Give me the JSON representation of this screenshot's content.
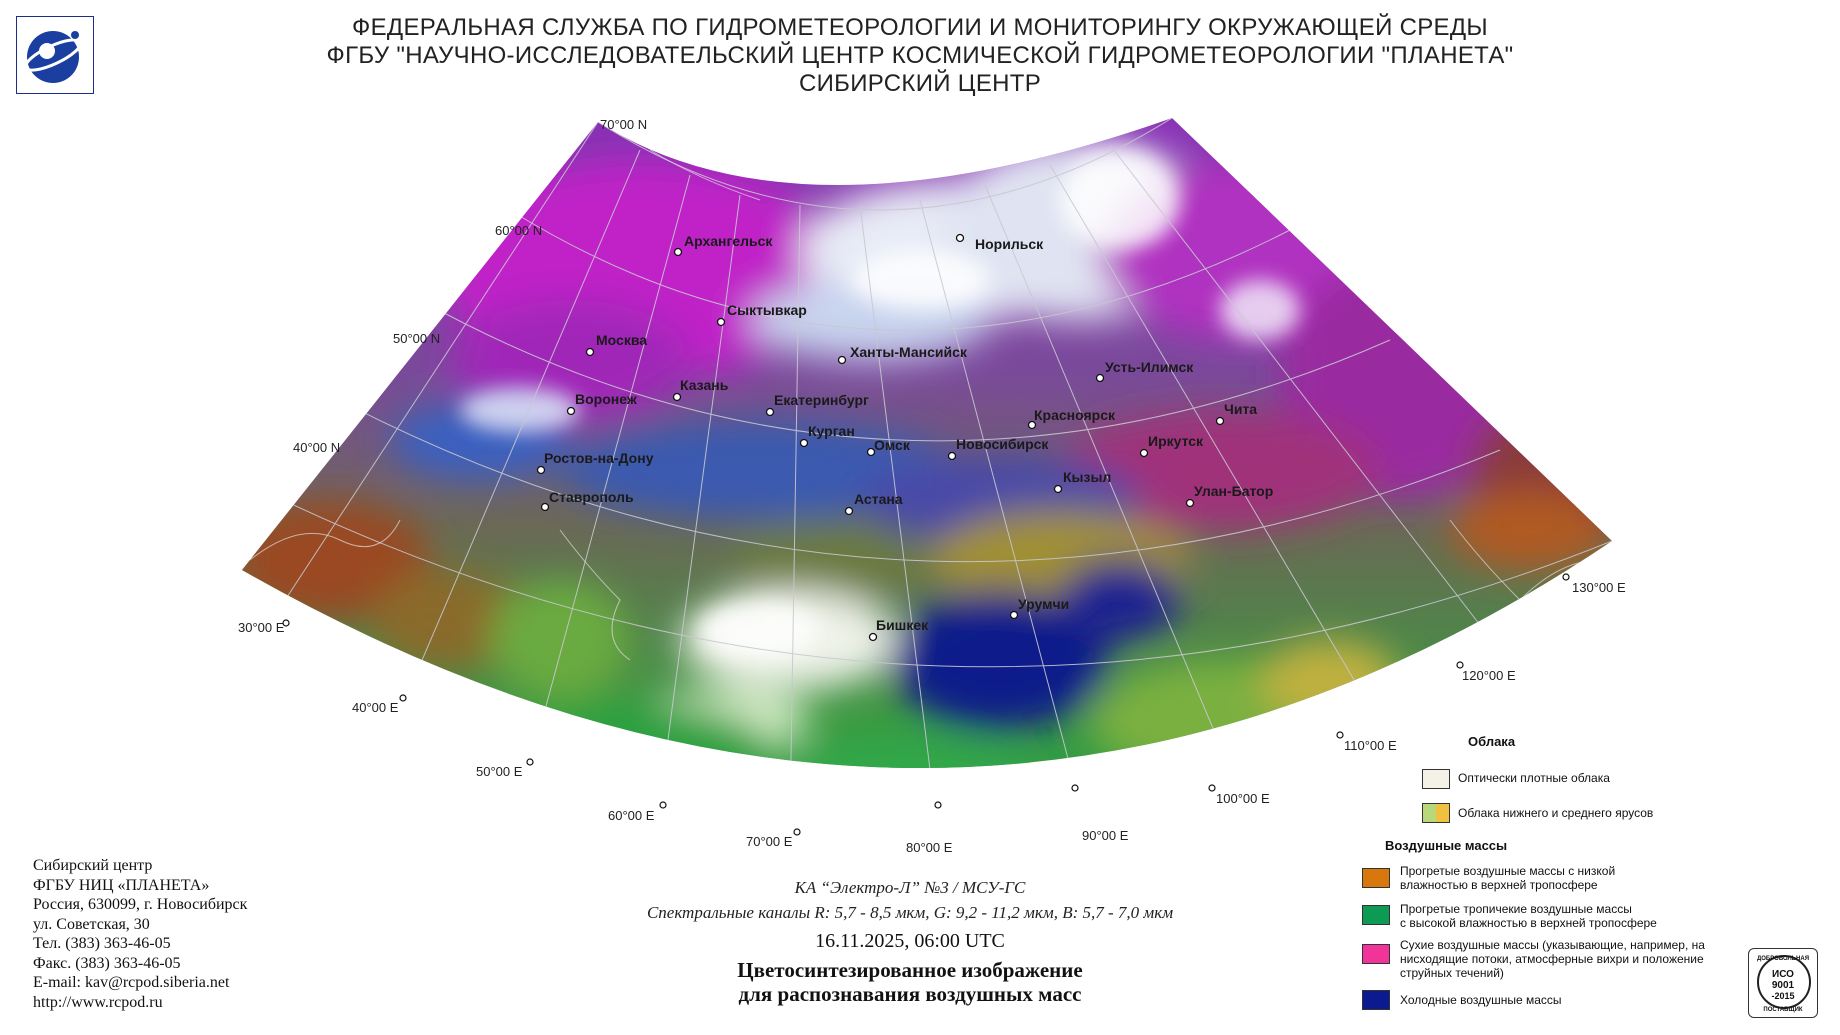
{
  "header": {
    "line1": "ФЕДЕРАЛЬНАЯ СЛУЖБА ПО ГИДРОМЕТЕОРОЛОГИИ И МОНИТОРИНГУ ОКРУЖАЮЩЕЙ СРЕДЫ",
    "line2": "ФГБУ \"НАУЧНО-ИССЛЕДОВАТЕЛЬСКИЙ ЦЕНТР КОСМИЧЕСКОЙ ГИДРОМЕТЕОРОЛОГИИ \"ПЛАНЕТА\"",
    "line3": "СИБИРСКИЙ ЦЕНТР"
  },
  "map": {
    "latitudes": [
      "70°00 N",
      "60°00 N",
      "50°00 N",
      "40°00 N"
    ],
    "longitudes": [
      "30°00 E",
      "40°00 E",
      "50°00 E",
      "60°00 E",
      "70°00 E",
      "80°00 E",
      "90°00 E",
      "100°00 E",
      "110°00 E",
      "120°00 E",
      "130°00 E"
    ],
    "cities": {
      "arkhangelsk": "Архангельск",
      "norilsk": "Норильск",
      "syktyvkar": "Сыктывкар",
      "moscow": "Москва",
      "khanty": "Ханты-Мансийск",
      "kazan": "Казань",
      "voronezh": "Воронеж",
      "yekaterinburg": "Екатеринбург",
      "ust_ilimsk": "Усть-Илимск",
      "krasnoyarsk": "Красноярск",
      "chita": "Чита",
      "kurgan": "Курган",
      "omsk": "Омск",
      "novosibirsk": "Новосибирск",
      "irkutsk": "Иркутск",
      "rostov": "Ростов-на-Дону",
      "kyzyl": "Кызыл",
      "ulanbator": "Улан-Батор",
      "stavropol": "Ставрополь",
      "astana": "Астана",
      "urumqi": "Урумчи",
      "bishkek": "Бишкек"
    }
  },
  "contact": {
    "line1": "Сибирский центр",
    "line2": "ФГБУ НИЦ «ПЛАНЕТА»",
    "line3": "Россия, 630099, г. Новосибирск",
    "line4": "ул. Советская, 30",
    "line5": "Тел. (383) 363-46-05",
    "line6": "Факс. (383) 363-46-05",
    "line7": "E-mail: kav@rcpod.siberia.net",
    "line8": "http://www.rcpod.ru"
  },
  "caption": {
    "satellite": "КА “Электро-Л” №3 / МСУ-ГС",
    "bands": "Спектральные каналы R: 5,7 - 8,5 мкм, G: 9,2 - 11,2 мкм, B: 5,7 - 7,0 мкм",
    "datetime": "16.11.2025, 06:00 UTC",
    "title1": "Цветосинтезированное изображение",
    "title2": "для распознавания воздушных масс"
  },
  "legend": {
    "clouds_title": "Облака",
    "dense_clouds": "Оптически плотные облака",
    "low_mid_clouds": "Облака нижнего и среднего ярусов",
    "air_title": "Воздушные массы",
    "warm_low_1": "Прогретые воздушные массы с низкой",
    "warm_low_2": "влажностью в верхней тропосфере",
    "trop_1": "Прогретые тропичекие воздушные массы",
    "trop_2": "с высокой влажностью в верхней тропосфере",
    "dry_1": "Сухие воздушные массы (указывающие, например, на",
    "dry_2": "нисходящие потоки, атмосферные вихри и положение",
    "dry_3": "струйных течений)",
    "cold": "Холодные воздушные массы",
    "colors": {
      "dense": "#f4f2e6",
      "low_mid_a": "#b8d97a",
      "low_mid_b": "#f0c040",
      "warm_low": "#d9770f",
      "trop": "#0e9a55",
      "dry": "#f0349a",
      "cold": "#0c1a8f"
    }
  },
  "iso": {
    "top": "ДОБРОВОЛЬНАЯ",
    "l1": "ИСО",
    "l2": "9001",
    "l3": "-2015",
    "bottom": "ПОСТАВЩИК"
  }
}
